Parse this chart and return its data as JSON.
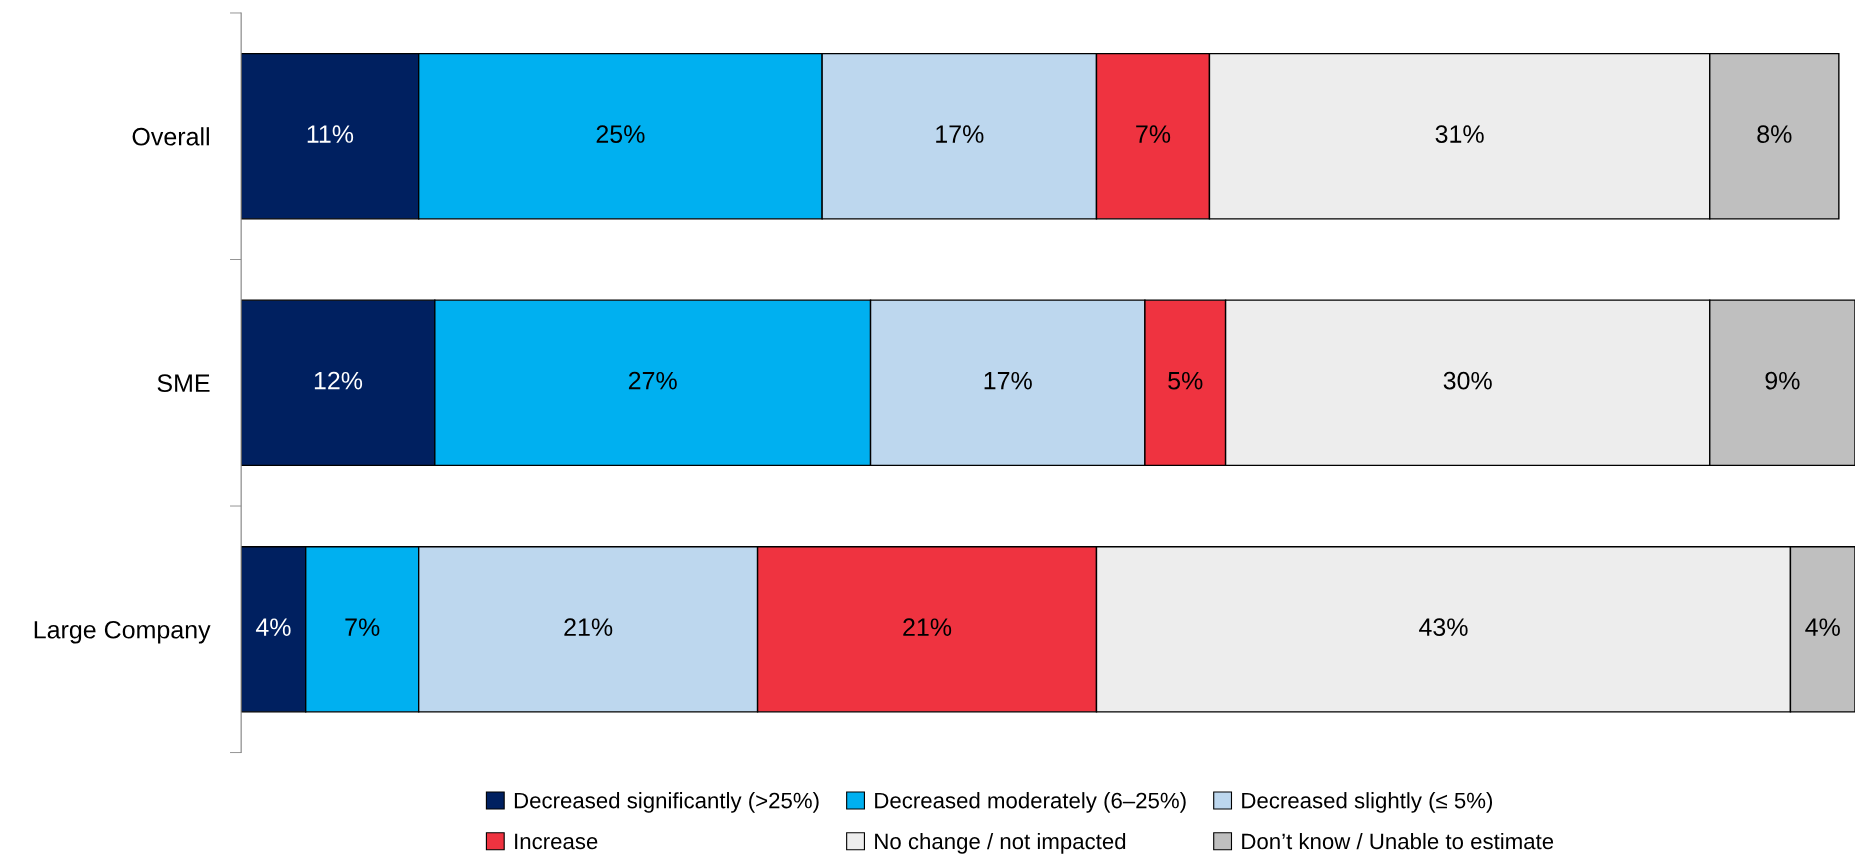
{
  "chart_data": {
    "type": "bar",
    "orientation": "horizontal",
    "stacked": true,
    "legend": "bottom",
    "grid": false,
    "categories": [
      "Overall",
      "SME",
      "Large Company"
    ],
    "series": [
      {
        "name": "Decreased significantly (>25%)",
        "color": "#002060",
        "values": [
          11,
          12,
          4
        ],
        "value_labels": [
          "11%",
          "12%",
          "4%"
        ]
      },
      {
        "name": "Decreased moderately (6–25%)",
        "color": "#00b0f0",
        "values": [
          25,
          27,
          7
        ],
        "value_labels": [
          "25%",
          "27%",
          "7%"
        ]
      },
      {
        "name": "Decreased slightly (≤ 5%)",
        "color": "#bdd7ee",
        "values": [
          17,
          17,
          21
        ],
        "value_labels": [
          "17%",
          "17%",
          "21%"
        ]
      },
      {
        "name": "Increase",
        "color": "#ef3340",
        "values": [
          7,
          5,
          21
        ],
        "value_labels": [
          "7%",
          "5%",
          "21%"
        ]
      },
      {
        "name": "No change / not impacted",
        "color": "#ededed",
        "values": [
          31,
          30,
          43
        ],
        "value_labels": [
          "31%",
          "30%",
          "43%"
        ]
      },
      {
        "name": "Don’t know / Unable to estimate",
        "color": "#bfbfbf",
        "values": [
          8,
          9,
          4
        ],
        "value_labels": [
          "8%",
          "9%",
          "4%"
        ]
      }
    ]
  }
}
